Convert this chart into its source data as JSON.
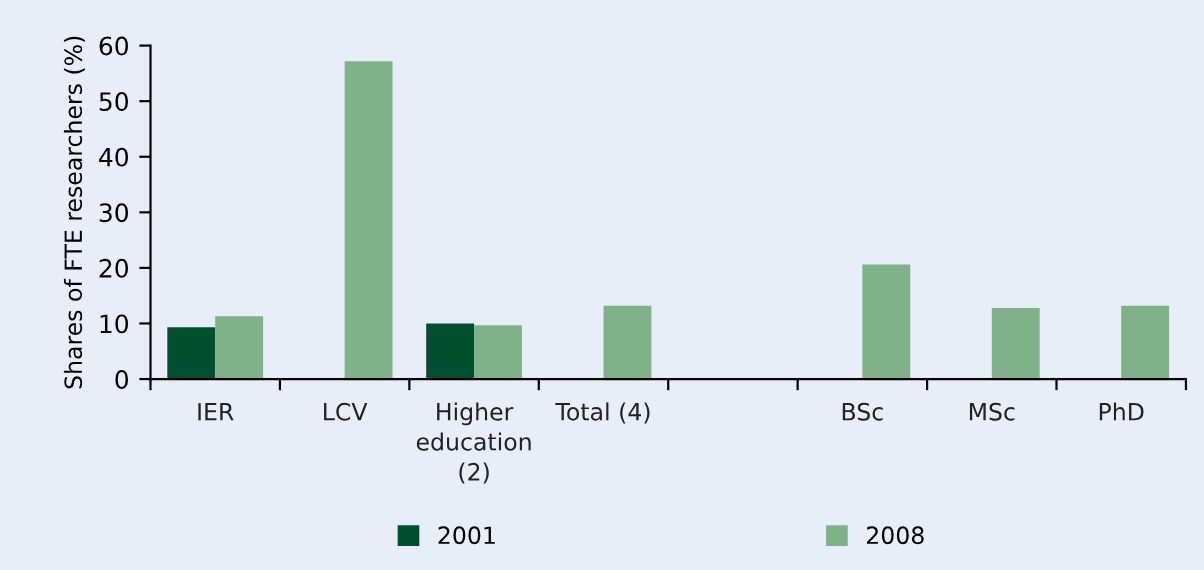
{
  "chart_data": {
    "type": "bar",
    "ylabel": "Shares of FTE researchers (%)",
    "categories": [
      "IER",
      "LCV",
      "Higher\neducation\n(2)",
      "Total (4)",
      null,
      "BSc",
      "MSc",
      "PhD"
    ],
    "series": [
      {
        "name": "2001",
        "color": "#00502f",
        "values": [
          9.3,
          null,
          10.0,
          null,
          null,
          null,
          null,
          null
        ]
      },
      {
        "name": "2008",
        "color": "#80b28a",
        "values": [
          11.3,
          57.2,
          9.7,
          13.2,
          null,
          20.6,
          12.8,
          13.2
        ]
      }
    ],
    "ylim": [
      0,
      60
    ],
    "yticks": [
      0,
      10,
      20,
      30,
      40,
      50,
      60
    ],
    "grid": false,
    "legend": "bottom"
  }
}
